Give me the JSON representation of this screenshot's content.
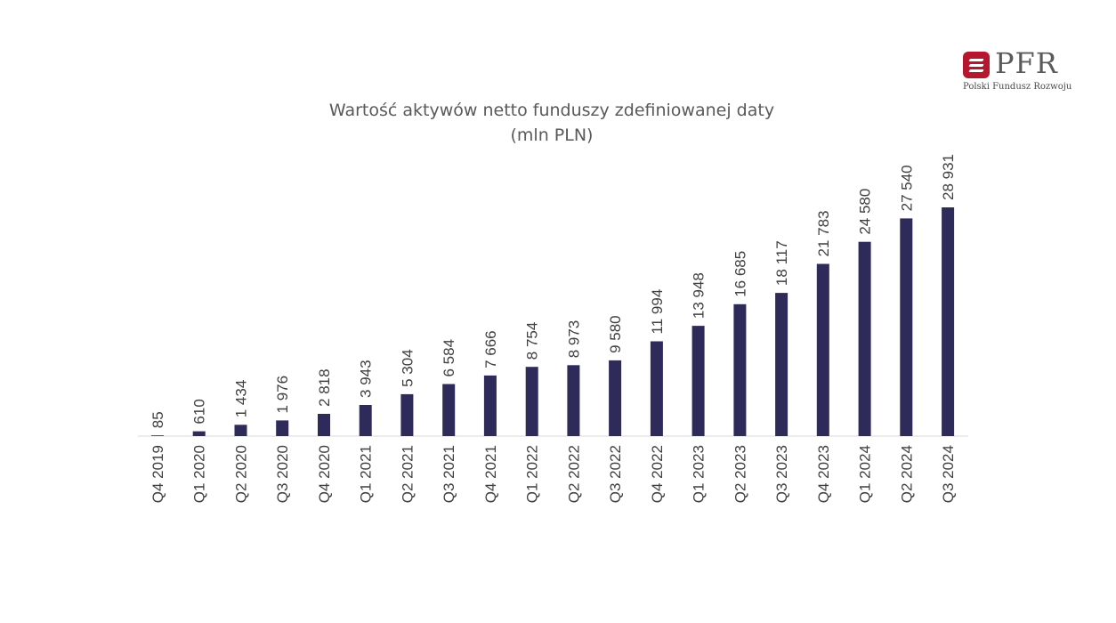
{
  "logo": {
    "name": "PFR",
    "subtitle": "Polski Fundusz Rozwoju",
    "color": "#b5172f"
  },
  "chart_data": {
    "type": "bar",
    "title": "Wartość aktywów netto funduszy zdefiniowanej daty",
    "subtitle": "(mln PLN)",
    "xlabel": "",
    "ylabel": "",
    "grid": false,
    "legend": "none",
    "bar_color": "#2e2a5a",
    "categories": [
      "Q4 2019",
      "Q1 2020",
      "Q2 2020",
      "Q3 2020",
      "Q4 2020",
      "Q1 2021",
      "Q2 2021",
      "Q3 2021",
      "Q4 2021",
      "Q1 2022",
      "Q2 2022",
      "Q3 2022",
      "Q4 2022",
      "Q1 2023",
      "Q2 2023",
      "Q3 2023",
      "Q4 2023",
      "Q1 2024",
      "Q2 2024",
      "Q3 2024"
    ],
    "values": [
      85,
      610,
      1434,
      1976,
      2818,
      3943,
      5304,
      6584,
      7666,
      8754,
      8973,
      9580,
      11994,
      13948,
      16685,
      18117,
      21783,
      24580,
      27540,
      28931
    ],
    "value_labels": [
      "85",
      "610",
      "1 434",
      "1 976",
      "2 818",
      "3 943",
      "5 304",
      "6 584",
      "7 666",
      "8 754",
      "8 973",
      "9 580",
      "11 994",
      "13 948",
      "16 685",
      "18 117",
      "21 783",
      "24 580",
      "27 540",
      "28 931"
    ],
    "ylim": [
      0,
      28931
    ]
  }
}
